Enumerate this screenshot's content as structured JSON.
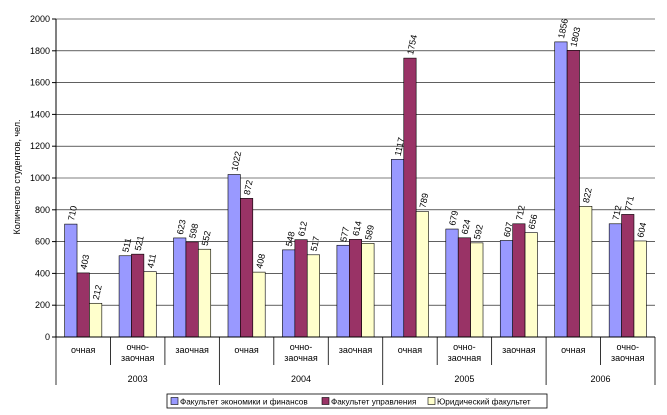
{
  "chart_data": {
    "type": "bar",
    "title": "",
    "xlabel": "",
    "ylabel": "Количество студентов, чел.",
    "ylim": [
      0,
      2000
    ],
    "ytick_step": 200,
    "yticks": [
      "0",
      "200",
      "400",
      "600",
      "800",
      "1000",
      "1200",
      "1400",
      "1600",
      "1800",
      "2000"
    ],
    "grid": "horizontal",
    "legend_position": "bottom",
    "categories": [
      [
        "очная"
      ],
      [
        "очно-",
        "заочная"
      ],
      [
        "заочная"
      ],
      [
        "очная"
      ],
      [
        "очно-",
        "заочная"
      ],
      [
        "заочная"
      ],
      [
        "очная"
      ],
      [
        "очно-",
        "заочная"
      ],
      [
        "заочная"
      ],
      [
        "очная"
      ],
      [
        "очно-",
        "заочная"
      ]
    ],
    "groups": [
      {
        "label": "2003",
        "span": 3
      },
      {
        "label": "2004",
        "span": 3
      },
      {
        "label": "2005",
        "span": 3
      },
      {
        "label": "2006",
        "span": 2
      }
    ],
    "series": [
      {
        "name": "Факультет экономики и финансов",
        "color": "#9999ff",
        "values": [
          710,
          511,
          623,
          1022,
          548,
          577,
          1117,
          679,
          607,
          1856,
          712
        ],
        "labels": [
          "710",
          "511",
          "623",
          "1022",
          "548",
          "577",
          "1117",
          "679",
          "607",
          "1856",
          "712"
        ]
      },
      {
        "name": "Факультет управления",
        "color": "#993366",
        "values": [
          403,
          521,
          598,
          872,
          612,
          614,
          1754,
          624,
          712,
          1803,
          771
        ],
        "labels": [
          "403",
          "521",
          "598",
          "872",
          "612",
          "614",
          "1754",
          "624",
          "712",
          "1803",
          "771"
        ]
      },
      {
        "name": "Юридический факультет",
        "color": "#ffffcc",
        "values": [
          212,
          411,
          552,
          408,
          517,
          589,
          789,
          592,
          656,
          822,
          604
        ],
        "labels": [
          "212",
          "411",
          "552",
          "408",
          "517",
          "589",
          "789",
          "592",
          "656",
          "822",
          "604"
        ]
      }
    ]
  }
}
